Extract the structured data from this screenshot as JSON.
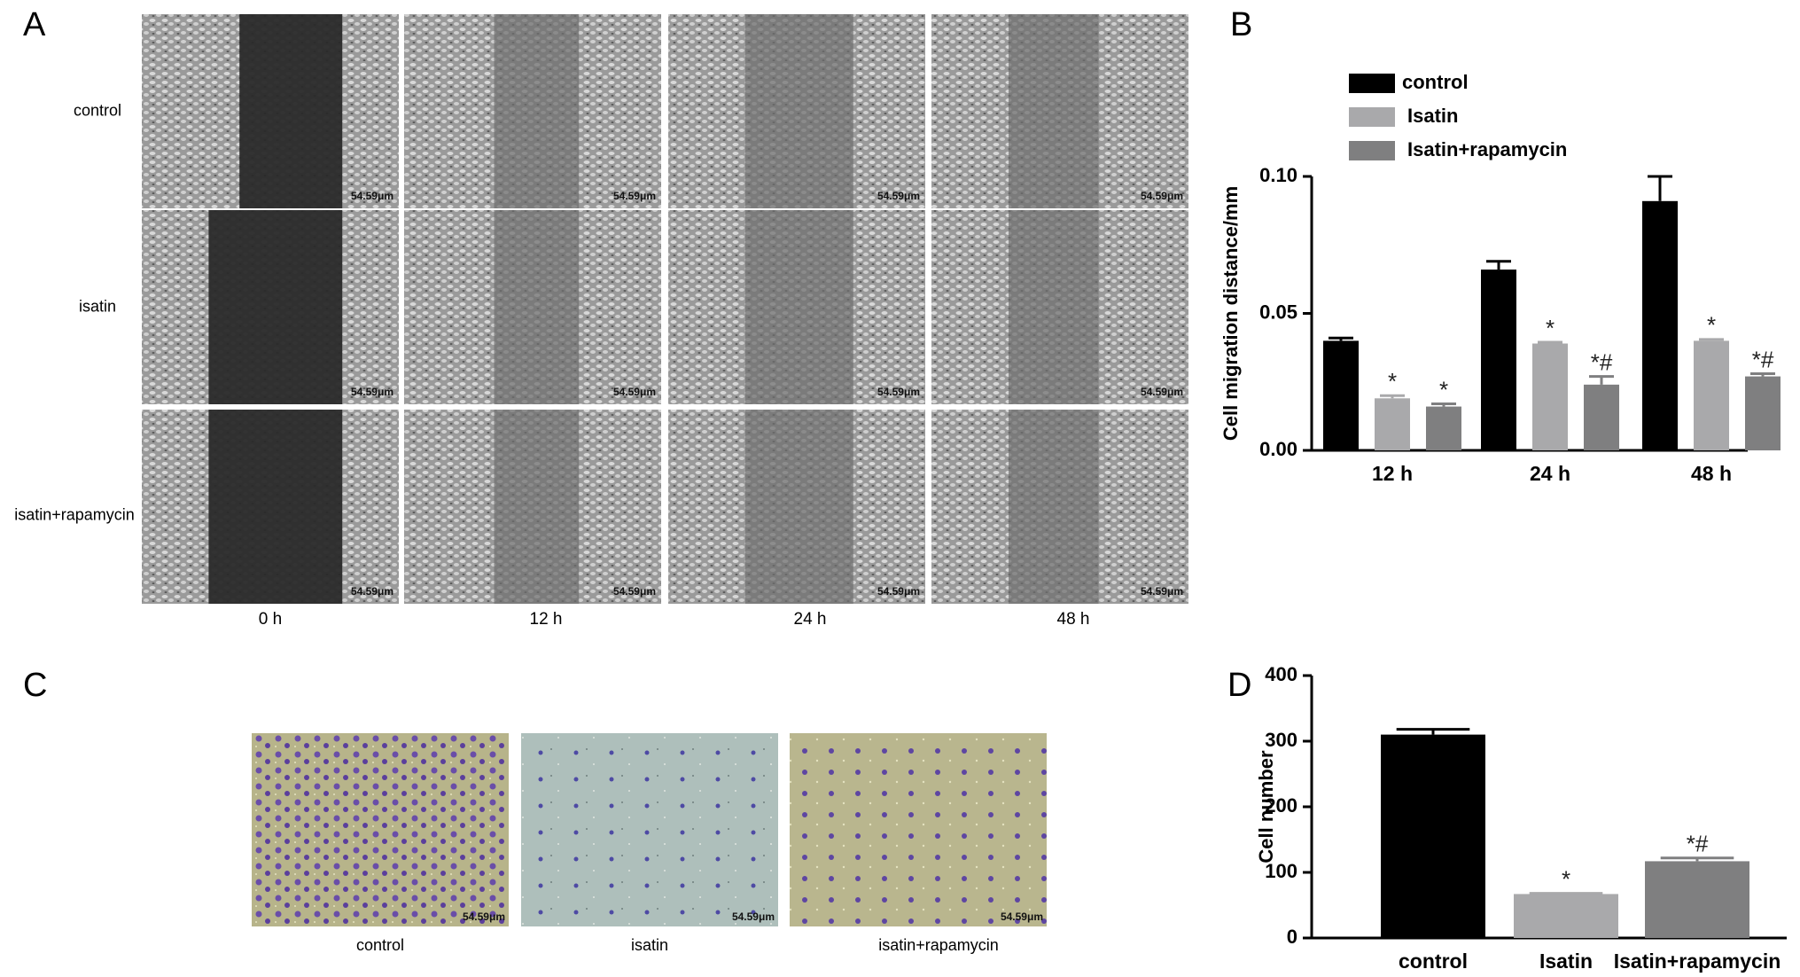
{
  "panel_labels": [
    "A",
    "B",
    "C",
    "D"
  ],
  "panel_a": {
    "rows": [
      "control",
      "isatin",
      "isatin+rapamycin"
    ],
    "columns": [
      "0 h",
      "12 h",
      "24 h",
      "48 h"
    ],
    "scale_bar": "54.59μm"
  },
  "panel_c": {
    "captions": [
      "control",
      "isatin",
      "isatin+rapamycin"
    ],
    "scale_bar": "54.59μm"
  },
  "chart_data": [
    {
      "type": "bar",
      "ylabel": "Cell migration distance/mm",
      "categories": [
        "12 h",
        "24 h",
        "48 h"
      ],
      "series": [
        {
          "name": "control",
          "color": "#000000",
          "values": [
            0.04,
            0.066,
            0.091
          ],
          "errors": [
            0.001,
            0.003,
            0.009
          ],
          "annotations": [
            null,
            null,
            null
          ]
        },
        {
          "name": "Isatin",
          "color": "#a9a9ab",
          "values": [
            0.019,
            0.039,
            0.04
          ],
          "errors": [
            0.001,
            0.0005,
            0.0005
          ],
          "annotations": [
            "*",
            "*",
            "*"
          ]
        },
        {
          "name": "Isatin+rapamycin",
          "color": "#7f7f80",
          "values": [
            0.016,
            0.024,
            0.027
          ],
          "errors": [
            0.001,
            0.003,
            0.001
          ],
          "annotations": [
            "*",
            "*#",
            "*#"
          ]
        }
      ],
      "ylim": [
        0,
        0.1
      ],
      "yticks": [
        {
          "value": 0,
          "label": "0.00"
        },
        {
          "value": 0.05,
          "label": "0.05"
        },
        {
          "value": 0.1,
          "label": "0.10"
        }
      ],
      "legend": "top-left"
    },
    {
      "type": "bar",
      "ylabel": "Cell number",
      "categories": [
        "control",
        "Isatin",
        "Isatin+rapamycin"
      ],
      "values": [
        310,
        67,
        117
      ],
      "errors": [
        8,
        1,
        5
      ],
      "colors": [
        "#000000",
        "#a9a9ab",
        "#7f7f80"
      ],
      "annotations": [
        null,
        "*",
        "*#"
      ],
      "ylim": [
        0,
        400
      ],
      "yticks": [
        0,
        100,
        200,
        300,
        400
      ]
    }
  ]
}
